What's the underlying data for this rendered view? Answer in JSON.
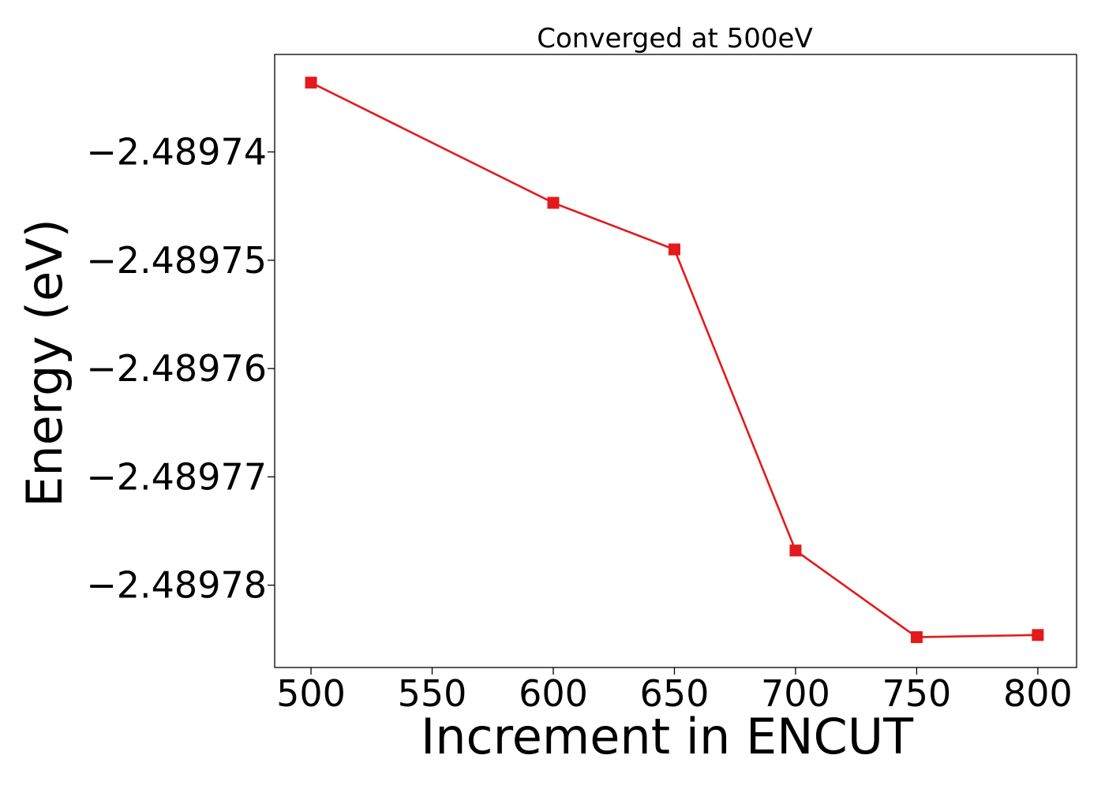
{
  "chart_data": {
    "type": "line",
    "title": "Converged at 500eV",
    "xlabel": "Increment in ENCUT",
    "ylabel": "Energy (eV)",
    "x": [
      500,
      600,
      650,
      700,
      750,
      800
    ],
    "series": [
      {
        "values": [
          -2.4897336,
          -2.4897447,
          -2.489749,
          -2.4897768,
          -2.4897848,
          -2.4897846
        ],
        "color": "#e31a1c",
        "marker": "square"
      }
    ],
    "xlim": [
      485,
      816
    ],
    "ylim": [
      -2.4897876,
      -2.489731
    ],
    "xticks": [
      500,
      550,
      600,
      650,
      700,
      750,
      800
    ],
    "xtick_labels": [
      "500",
      "550",
      "600",
      "650",
      "700",
      "750",
      "800"
    ],
    "yticks": [
      -2.48974,
      -2.48975,
      -2.48976,
      -2.48977,
      -2.48978
    ],
    "ytick_labels": [
      "−2.48974",
      "−2.48975",
      "−2.48976",
      "−2.48977",
      "−2.48978"
    ],
    "grid": false,
    "legend": "none"
  }
}
